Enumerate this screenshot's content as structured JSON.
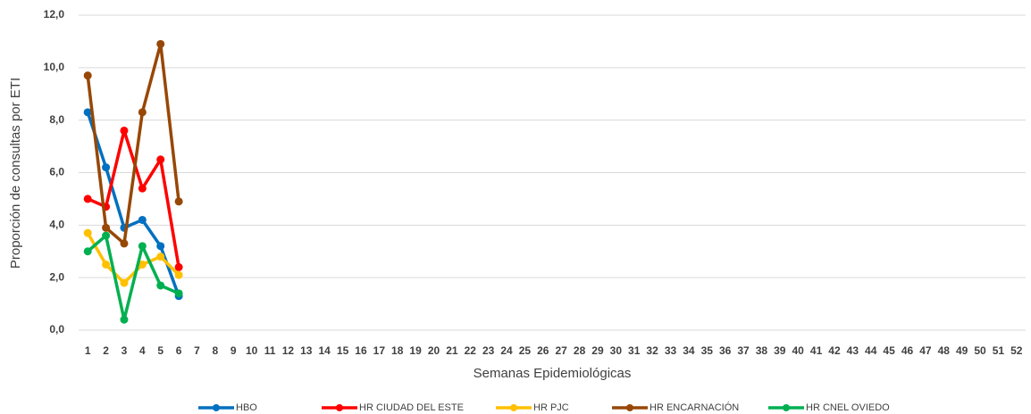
{
  "chart_data": {
    "type": "line",
    "x_label": "Semanas Epidemiológicas",
    "y_label": "Proporción de consultas por ETI",
    "categories": [
      1,
      2,
      3,
      4,
      5,
      6,
      7,
      8,
      9,
      10,
      11,
      12,
      13,
      14,
      15,
      16,
      17,
      18,
      19,
      20,
      21,
      22,
      23,
      24,
      25,
      26,
      27,
      28,
      29,
      30,
      31,
      32,
      33,
      34,
      35,
      36,
      37,
      38,
      39,
      40,
      41,
      42,
      43,
      44,
      45,
      46,
      47,
      48,
      49,
      50,
      51,
      52
    ],
    "ylim": [
      0,
      12
    ],
    "yticks": [
      {
        "value": 0,
        "label": "0,0"
      },
      {
        "value": 2,
        "label": "2,0"
      },
      {
        "value": 4,
        "label": "4,0"
      },
      {
        "value": 6,
        "label": "6,0"
      },
      {
        "value": 8,
        "label": "8,0"
      },
      {
        "value": 10,
        "label": "10,0"
      },
      {
        "value": 12,
        "label": "12,0"
      }
    ],
    "grid": true,
    "legend": "bottom",
    "series": [
      {
        "name": "HBO",
        "color": "#0070c0",
        "values": [
          8.3,
          6.2,
          3.9,
          4.2,
          3.2,
          1.3,
          null,
          null,
          null,
          null,
          null,
          null,
          null,
          null,
          null,
          null,
          null,
          null,
          null,
          null,
          null,
          null,
          null,
          null,
          null,
          null,
          null,
          null,
          null,
          null,
          null,
          null,
          null,
          null,
          null,
          null,
          null,
          null,
          null,
          null,
          null,
          null,
          null,
          null,
          null,
          null,
          null,
          null,
          null,
          null,
          null,
          null
        ]
      },
      {
        "name": "HR CIUDAD DEL ESTE",
        "color": "#ff0000",
        "values": [
          5.0,
          4.7,
          7.6,
          5.4,
          6.5,
          2.4,
          null,
          null,
          null,
          null,
          null,
          null,
          null,
          null,
          null,
          null,
          null,
          null,
          null,
          null,
          null,
          null,
          null,
          null,
          null,
          null,
          null,
          null,
          null,
          null,
          null,
          null,
          null,
          null,
          null,
          null,
          null,
          null,
          null,
          null,
          null,
          null,
          null,
          null,
          null,
          null,
          null,
          null,
          null,
          null,
          null,
          null
        ]
      },
      {
        "name": "HR PJC",
        "color": "#ffc000",
        "values": [
          3.7,
          2.5,
          1.8,
          2.5,
          2.8,
          2.1,
          null,
          null,
          null,
          null,
          null,
          null,
          null,
          null,
          null,
          null,
          null,
          null,
          null,
          null,
          null,
          null,
          null,
          null,
          null,
          null,
          null,
          null,
          null,
          null,
          null,
          null,
          null,
          null,
          null,
          null,
          null,
          null,
          null,
          null,
          null,
          null,
          null,
          null,
          null,
          null,
          null,
          null,
          null,
          null,
          null,
          null
        ]
      },
      {
        "name": "HR ENCARNACIÓN",
        "color": "#974706",
        "values": [
          9.7,
          3.9,
          3.3,
          8.3,
          10.9,
          4.9,
          null,
          null,
          null,
          null,
          null,
          null,
          null,
          null,
          null,
          null,
          null,
          null,
          null,
          null,
          null,
          null,
          null,
          null,
          null,
          null,
          null,
          null,
          null,
          null,
          null,
          null,
          null,
          null,
          null,
          null,
          null,
          null,
          null,
          null,
          null,
          null,
          null,
          null,
          null,
          null,
          null,
          null,
          null,
          null,
          null,
          null
        ]
      },
      {
        "name": "HR CNEL OVIEDO",
        "color": "#00b050",
        "values": [
          3.0,
          3.6,
          0.4,
          3.2,
          1.7,
          1.4,
          null,
          null,
          null,
          null,
          null,
          null,
          null,
          null,
          null,
          null,
          null,
          null,
          null,
          null,
          null,
          null,
          null,
          null,
          null,
          null,
          null,
          null,
          null,
          null,
          null,
          null,
          null,
          null,
          null,
          null,
          null,
          null,
          null,
          null,
          null,
          null,
          null,
          null,
          null,
          null,
          null,
          null,
          null,
          null,
          null,
          null
        ]
      }
    ]
  }
}
